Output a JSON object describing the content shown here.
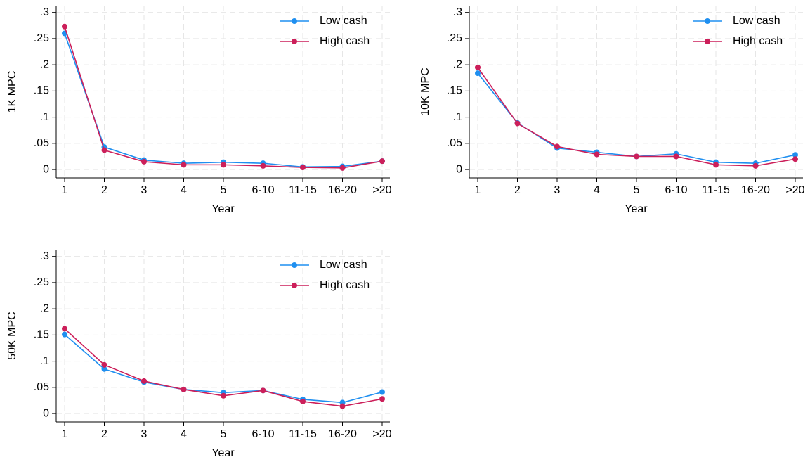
{
  "chart_data": [
    {
      "type": "line",
      "ylabel": "1K MPC",
      "xlabel": "Year",
      "categories": [
        "1",
        "2",
        "3",
        "4",
        "5",
        "6-10",
        "11-15",
        "16-20",
        ">20"
      ],
      "series": [
        {
          "name": "Low cash",
          "color": "#1f8ff0",
          "values": [
            0.26,
            0.043,
            0.018,
            0.012,
            0.014,
            0.012,
            0.005,
            0.006,
            0.016
          ]
        },
        {
          "name": "High cash",
          "color": "#cc1f5a",
          "values": [
            0.273,
            0.037,
            0.015,
            0.009,
            0.009,
            0.007,
            0.004,
            0.003,
            0.016
          ]
        }
      ],
      "ylim": [
        -0.016,
        0.313
      ],
      "yticks": [
        0,
        {
          "value": 0.05,
          "label": ".05"
        },
        {
          "value": 0.1,
          "label": ".1"
        },
        {
          "value": 0.15,
          "label": ".15"
        },
        {
          "value": 0.2,
          "label": ".2"
        },
        {
          "value": 0.25,
          "label": ".25"
        },
        {
          "value": 0.3,
          "label": ".3"
        }
      ],
      "grid": true,
      "legend": "top-right"
    },
    {
      "type": "line",
      "ylabel": "10K MPC",
      "xlabel": "Year",
      "categories": [
        "1",
        "2",
        "3",
        "4",
        "5",
        "6-10",
        "11-15",
        "16-20",
        ">20"
      ],
      "series": [
        {
          "name": "Low cash",
          "color": "#1f8ff0",
          "values": [
            0.184,
            0.089,
            0.041,
            0.033,
            0.025,
            0.03,
            0.014,
            0.012,
            0.028
          ]
        },
        {
          "name": "High cash",
          "color": "#cc1f5a",
          "values": [
            0.195,
            0.088,
            0.044,
            0.029,
            0.025,
            0.025,
            0.009,
            0.007,
            0.02
          ]
        }
      ],
      "ylim": [
        -0.016,
        0.313
      ],
      "yticks": [
        0,
        {
          "value": 0.05,
          "label": ".05"
        },
        {
          "value": 0.1,
          "label": ".1"
        },
        {
          "value": 0.15,
          "label": ".15"
        },
        {
          "value": 0.2,
          "label": ".2"
        },
        {
          "value": 0.25,
          "label": ".25"
        },
        {
          "value": 0.3,
          "label": ".3"
        }
      ],
      "grid": true,
      "legend": "top-right"
    },
    {
      "type": "line",
      "ylabel": "50K MPC",
      "xlabel": "Year",
      "categories": [
        "1",
        "2",
        "3",
        "4",
        "5",
        "6-10",
        "11-15",
        "16-20",
        ">20"
      ],
      "series": [
        {
          "name": "Low cash",
          "color": "#1f8ff0",
          "values": [
            0.151,
            0.085,
            0.06,
            0.046,
            0.04,
            0.044,
            0.027,
            0.021,
            0.041
          ]
        },
        {
          "name": "High cash",
          "color": "#cc1f5a",
          "values": [
            0.162,
            0.093,
            0.062,
            0.046,
            0.034,
            0.044,
            0.023,
            0.014,
            0.028
          ]
        }
      ],
      "ylim": [
        -0.016,
        0.313
      ],
      "yticks": [
        0,
        {
          "value": 0.05,
          "label": ".05"
        },
        {
          "value": 0.1,
          "label": ".1"
        },
        {
          "value": 0.15,
          "label": ".15"
        },
        {
          "value": 0.2,
          "label": ".2"
        },
        {
          "value": 0.25,
          "label": ".25"
        },
        {
          "value": 0.3,
          "label": ".3"
        }
      ],
      "grid": true,
      "legend": "top-right"
    }
  ]
}
